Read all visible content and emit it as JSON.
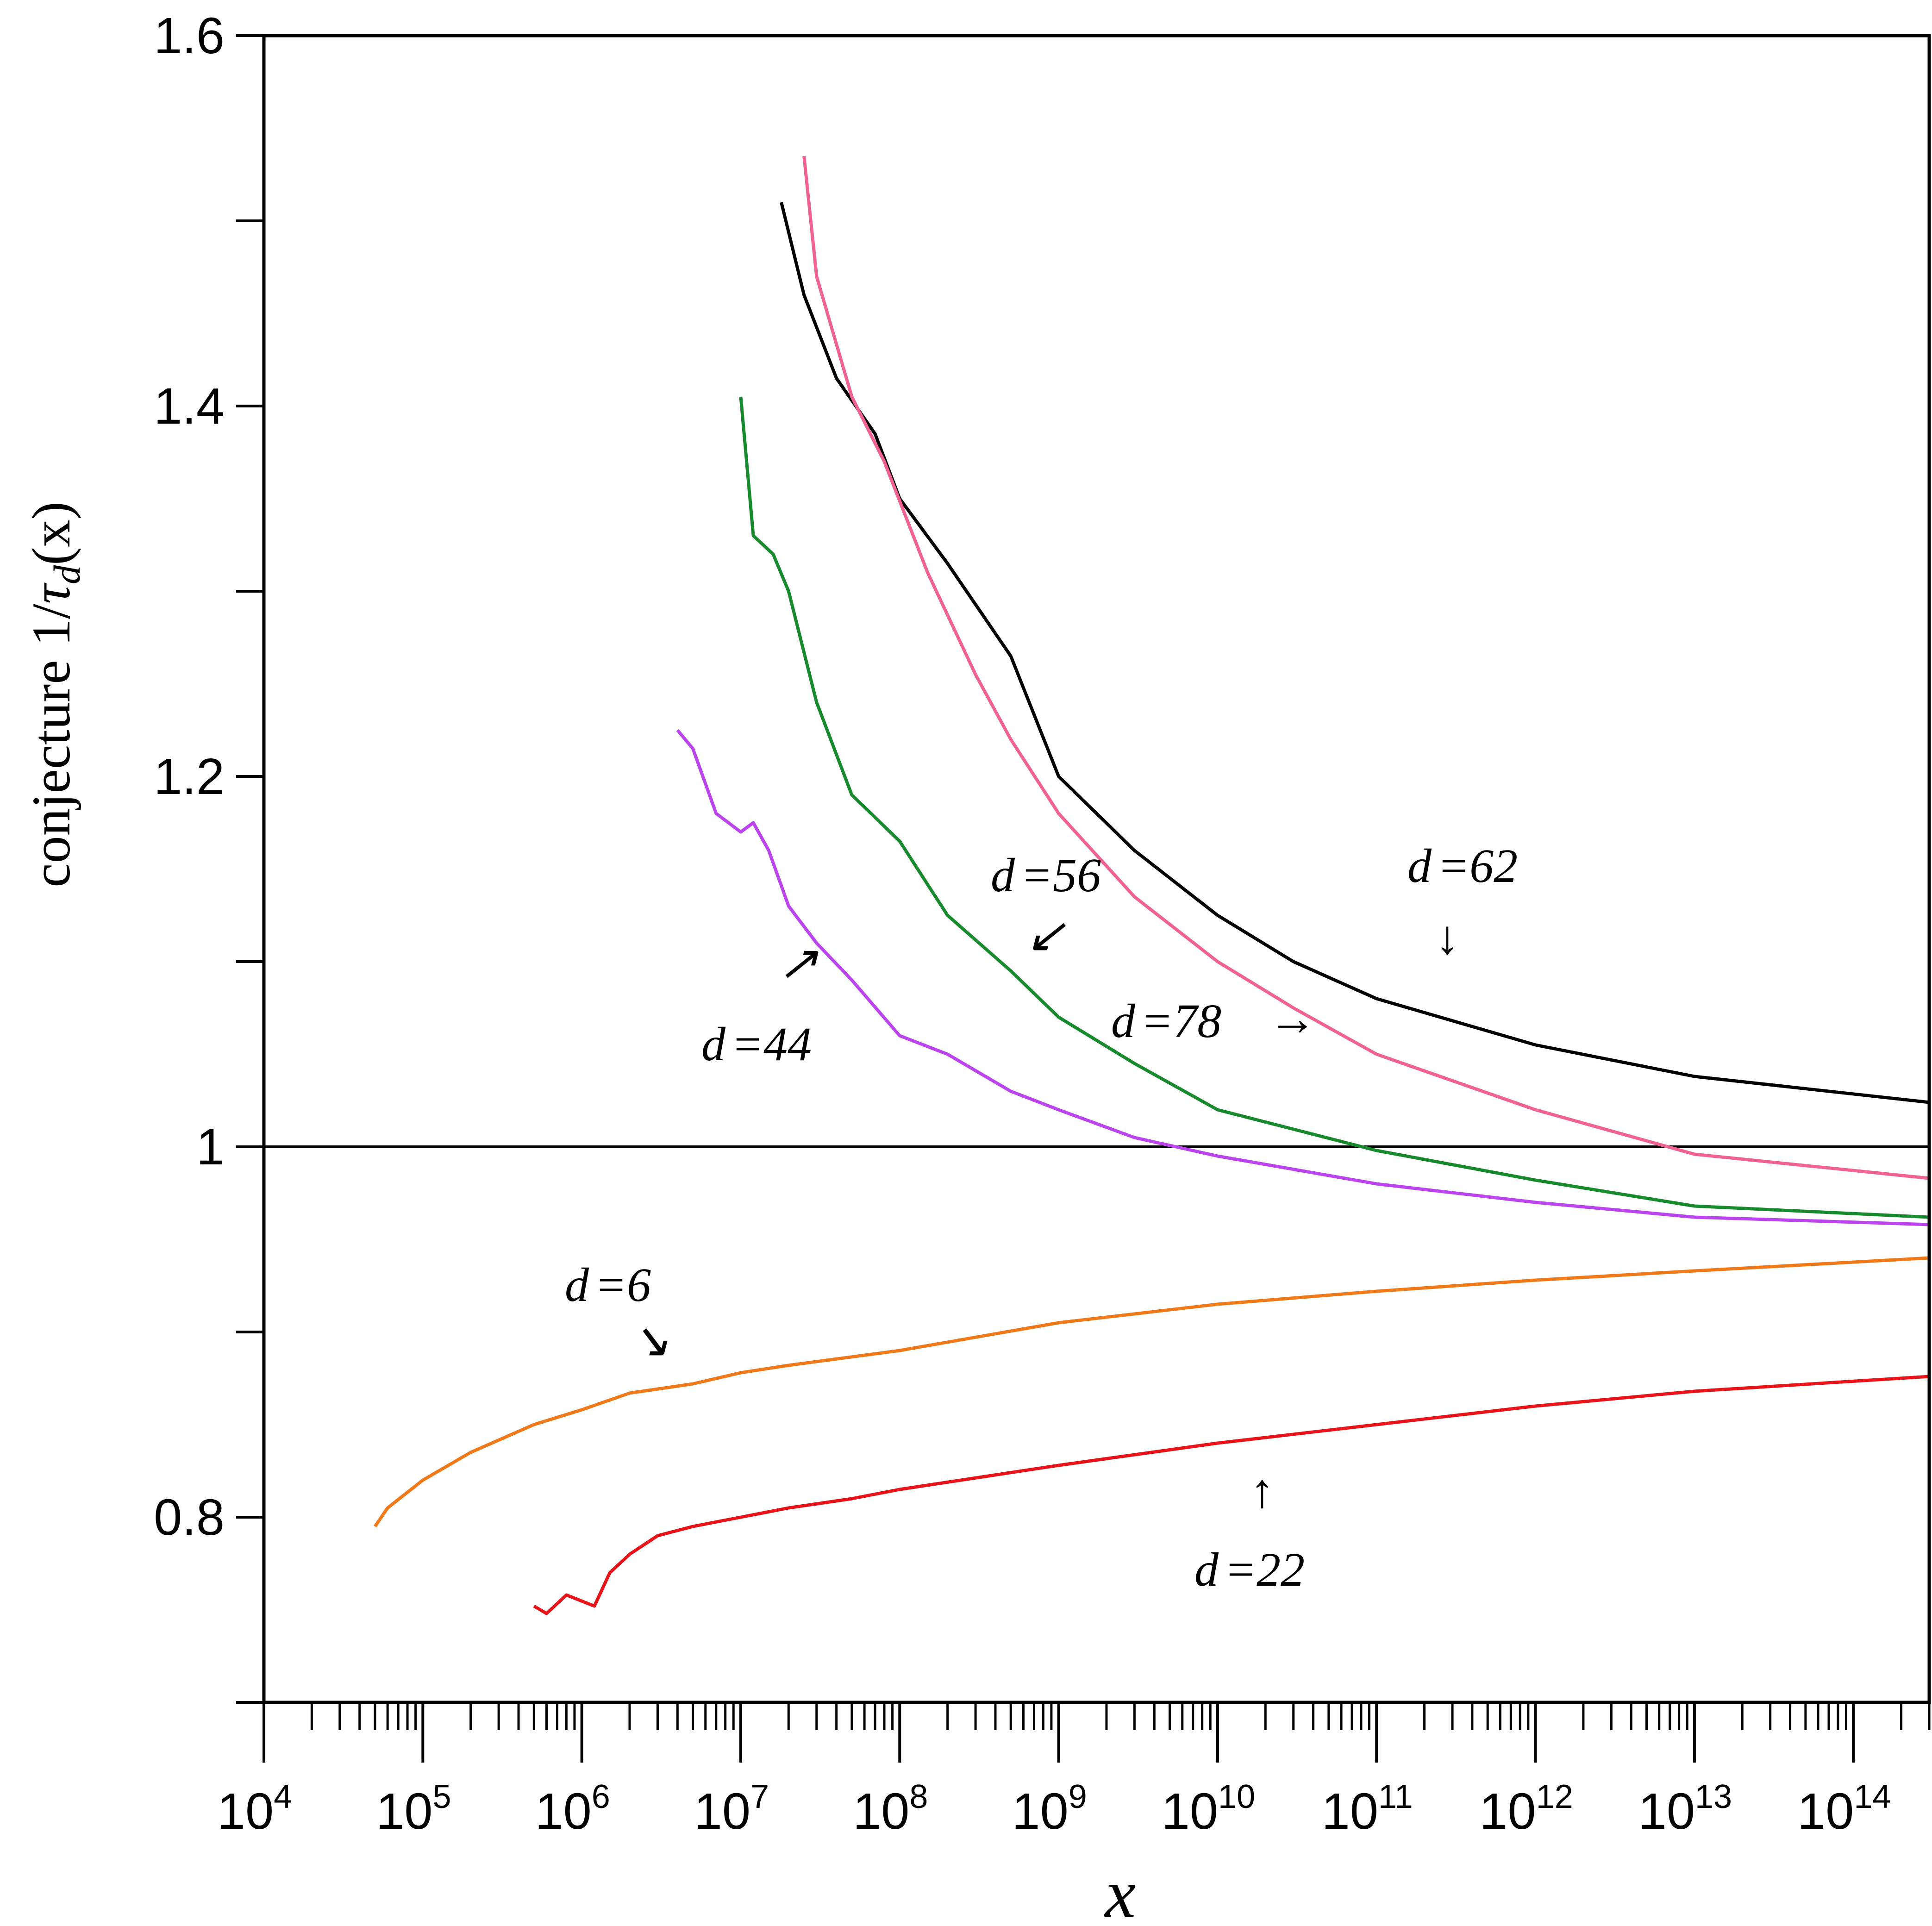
{
  "chart_data": {
    "type": "line",
    "xlabel": "x",
    "ylabel": {
      "prefix": "conjecture 1/",
      "symbol": "τ",
      "subscript": "d",
      "suffix": "(x)"
    },
    "x_scale": "log",
    "xlim": [
      10000,
      300000000000000
    ],
    "ylim": [
      0.7,
      1.6
    ],
    "y_ticks": [
      {
        "value": 0.8,
        "label": "0.8"
      },
      {
        "value": 1.0,
        "label": "1"
      },
      {
        "value": 1.2,
        "label": "1.2"
      },
      {
        "value": 1.4,
        "label": "1.4"
      },
      {
        "value": 1.6,
        "label": "1.6"
      }
    ],
    "x_ticks": [
      {
        "value": 10000,
        "base": "10",
        "exp": "4"
      },
      {
        "value": 100000,
        "base": "10",
        "exp": "5"
      },
      {
        "value": 1000000,
        "base": "10",
        "exp": "6"
      },
      {
        "value": 10000000,
        "base": "10",
        "exp": "7"
      },
      {
        "value": 100000000,
        "base": "10",
        "exp": "8"
      },
      {
        "value": 1000000000,
        "base": "10",
        "exp": "9"
      },
      {
        "value": 10000000000,
        "base": "10",
        "exp": "10"
      },
      {
        "value": 100000000000,
        "base": "10",
        "exp": "11"
      },
      {
        "value": 1000000000000,
        "base": "10",
        "exp": "12"
      },
      {
        "value": 10000000000000,
        "base": "10",
        "exp": "13"
      },
      {
        "value": 100000000000000,
        "base": "10",
        "exp": "14"
      }
    ],
    "reference_line": 1.0,
    "series": [
      {
        "name": "d=62",
        "color": "#000000",
        "x": [
          18000000.0,
          25000000.0,
          40000000.0,
          70000000.0,
          100000000.0,
          200000000.0,
          500000000.0,
          1000000000.0,
          3000000000.0,
          10000000000.0,
          30000000000.0,
          100000000000.0,
          1000000000000.0,
          10000000000000.0,
          300000000000000.0
        ],
        "y": [
          1.51,
          1.46,
          1.415,
          1.385,
          1.35,
          1.315,
          1.265,
          1.2,
          1.16,
          1.125,
          1.1,
          1.08,
          1.055,
          1.038,
          1.024
        ]
      },
      {
        "name": "d=78",
        "color": "#f06292",
        "x": [
          25000000.0,
          30000000.0,
          50000000.0,
          80000000.0,
          150000000.0,
          300000000.0,
          500000000.0,
          1000000000.0,
          3000000000.0,
          10000000000.0,
          30000000000.0,
          100000000000.0,
          1000000000000.0,
          10000000000000.0,
          300000000000000.0
        ],
        "y": [
          1.535,
          1.47,
          1.405,
          1.37,
          1.31,
          1.255,
          1.22,
          1.18,
          1.135,
          1.1,
          1.075,
          1.05,
          1.02,
          0.996,
          0.983
        ]
      },
      {
        "name": "d=56",
        "color": "#178a2e",
        "x": [
          10000000.0,
          12000000.0,
          16000000.0,
          20000000.0,
          30000000.0,
          50000000.0,
          100000000.0,
          200000000.0,
          500000000.0,
          1000000000.0,
          3000000000.0,
          10000000000.0,
          100000000000.0,
          1000000000000.0,
          10000000000000.0,
          300000000000000.0
        ],
        "y": [
          1.405,
          1.33,
          1.32,
          1.3,
          1.24,
          1.19,
          1.165,
          1.125,
          1.095,
          1.07,
          1.045,
          1.02,
          0.998,
          0.982,
          0.968,
          0.962
        ]
      },
      {
        "name": "d=44",
        "color": "#bb44ee",
        "x": [
          4000000.0,
          5000000.0,
          7000000.0,
          10000000.0,
          12000000.0,
          15000000.0,
          20000000.0,
          30000000.0,
          50000000.0,
          100000000.0,
          200000000.0,
          500000000.0,
          1000000000.0,
          3000000000.0,
          10000000000.0,
          100000000000.0,
          1000000000000.0,
          10000000000000.0,
          300000000000000.0
        ],
        "y": [
          1.225,
          1.215,
          1.18,
          1.17,
          1.175,
          1.16,
          1.13,
          1.11,
          1.09,
          1.06,
          1.05,
          1.03,
          1.02,
          1.005,
          0.995,
          0.98,
          0.97,
          0.962,
          0.958
        ]
      },
      {
        "name": "d=6",
        "color": "#f07a1a",
        "x": [
          50000.0,
          60000.0,
          100000.0,
          200000.0,
          500000.0,
          1000000.0,
          2000000.0,
          5000000.0,
          10000000.0,
          20000000.0,
          100000000.0,
          1000000000.0,
          10000000000.0,
          100000000000.0,
          1000000000000.0,
          10000000000000.0,
          300000000000000.0
        ],
        "y": [
          0.795,
          0.805,
          0.82,
          0.835,
          0.85,
          0.858,
          0.867,
          0.872,
          0.878,
          0.882,
          0.89,
          0.905,
          0.915,
          0.922,
          0.928,
          0.933,
          0.94
        ]
      },
      {
        "name": "d=22",
        "color": "#e8141a",
        "x": [
          500000.0,
          600000.0,
          800000.0,
          1200000.0,
          1500000.0,
          2000000.0,
          3000000.0,
          5000000.0,
          10000000.0,
          20000000.0,
          50000000.0,
          100000000.0,
          1000000000.0,
          10000000000.0,
          100000000000.0,
          1000000000000.0,
          10000000000000.0,
          300000000000000.0
        ],
        "y": [
          0.752,
          0.748,
          0.758,
          0.752,
          0.77,
          0.78,
          0.79,
          0.795,
          0.8,
          0.805,
          0.81,
          0.815,
          0.828,
          0.84,
          0.85,
          0.86,
          0.868,
          0.876
        ]
      }
    ],
    "annotations": [
      {
        "name": "d",
        "value": "=62",
        "arrow": "↓"
      },
      {
        "name": "d",
        "value": "=56",
        "arrow": "↙"
      },
      {
        "name": "d",
        "value": "=78",
        "arrow": "→"
      },
      {
        "name": "d",
        "value": "=44",
        "arrow": "↗"
      },
      {
        "name": "d",
        "value": "=6",
        "arrow": "↘"
      },
      {
        "name": "d",
        "value": "=22",
        "arrow": "↑"
      }
    ]
  }
}
